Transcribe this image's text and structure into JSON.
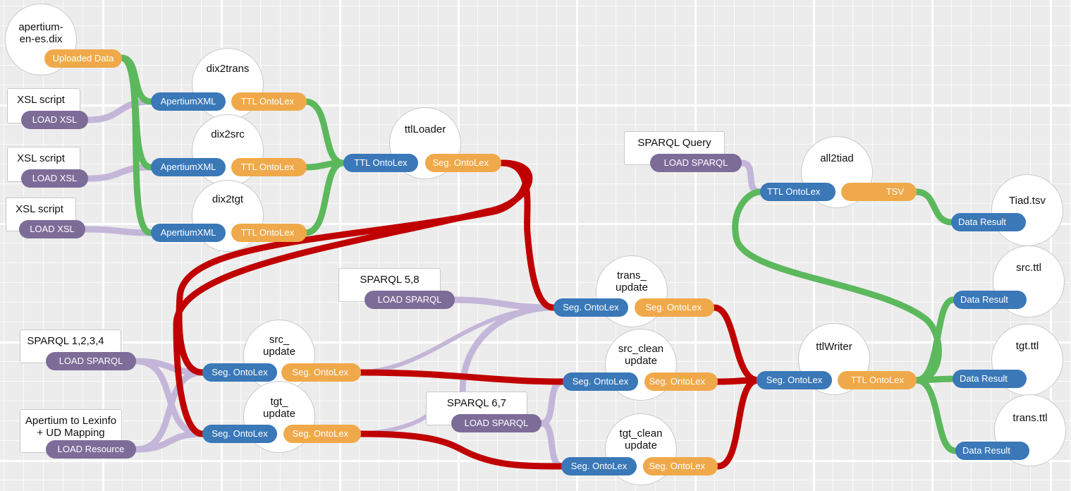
{
  "colors": {
    "background": "#ececec",
    "port_input": "#3a78b8",
    "port_output": "#f0a94a",
    "port_loader": "#7d6c98",
    "edge_green": "#5cb85c",
    "edge_red": "#c00000",
    "edge_lavender": "#c4b6d8"
  },
  "data_sources": {
    "dix": {
      "title": "apertium-\nen-es.dix",
      "port": "Uploaded Data"
    },
    "xsl1": {
      "title": "XSL script",
      "port": "LOAD XSL"
    },
    "xsl2": {
      "title": "XSL script",
      "port": "LOAD XSL"
    },
    "xsl3": {
      "title": "XSL script",
      "port": "LOAD XSL"
    },
    "sparql_query": {
      "title": "SPARQL Query",
      "port": "LOAD SPARQL"
    },
    "sparql58": {
      "title": "SPARQL 5,8",
      "port": "LOAD SPARQL"
    },
    "sparql1234": {
      "title": "SPARQL 1,2,3,4",
      "port": "LOAD SPARQL"
    },
    "lexinfo": {
      "title": "Apertium to Lexinfo\n+ UD Mapping",
      "port": "LOAD Resource"
    },
    "sparql67": {
      "title": "SPARQL 6,7",
      "port": "LOAD SPARQL"
    }
  },
  "nodes": {
    "dix2trans": {
      "title": "dix2trans",
      "in": "ApertiumXML",
      "out": "TTL OntoLex"
    },
    "dix2src": {
      "title": "dix2src",
      "in": "ApertiumXML",
      "out": "TTL OntoLex"
    },
    "dix2tgt": {
      "title": "dix2tgt",
      "in": "ApertiumXML",
      "out": "TTL OntoLex"
    },
    "ttlLoader": {
      "title": "ttlLoader",
      "in": "TTL OntoLex",
      "out": "Seg. OntoLex"
    },
    "all2tiad": {
      "title": "all2tiad",
      "in": "TTL OntoLex",
      "out": "TSV"
    },
    "trans_update": {
      "title": "trans_\nupdate",
      "in": "Seg. OntoLex",
      "out": "Seg. OntoLex"
    },
    "src_update": {
      "title": "src_\nupdate",
      "in": "Seg. OntoLex",
      "out": "Seg. OntoLex"
    },
    "tgt_update": {
      "title": "tgt_\nupdate",
      "in": "Seg. OntoLex",
      "out": "Seg. OntoLex"
    },
    "src_clean": {
      "title": "src_clean\nupdate",
      "in": "Seg. OntoLex",
      "out": "Seg. OntoLex"
    },
    "tgt_clean": {
      "title": "tgt_clean\nupdate",
      "in": "Seg. OntoLex",
      "out": "Seg. OntoLex"
    },
    "ttlWriter": {
      "title": "ttlWriter",
      "in": "Seg. OntoLex",
      "out": "TTL OntoLex"
    }
  },
  "results": {
    "tiad": {
      "title": "Tiad.tsv",
      "port": "Data Result"
    },
    "src": {
      "title": "src.ttl",
      "port": "Data Result"
    },
    "tgt": {
      "title": "tgt.ttl",
      "port": "Data Result"
    },
    "trans": {
      "title": "trans.ttl",
      "port": "Data Result"
    }
  }
}
